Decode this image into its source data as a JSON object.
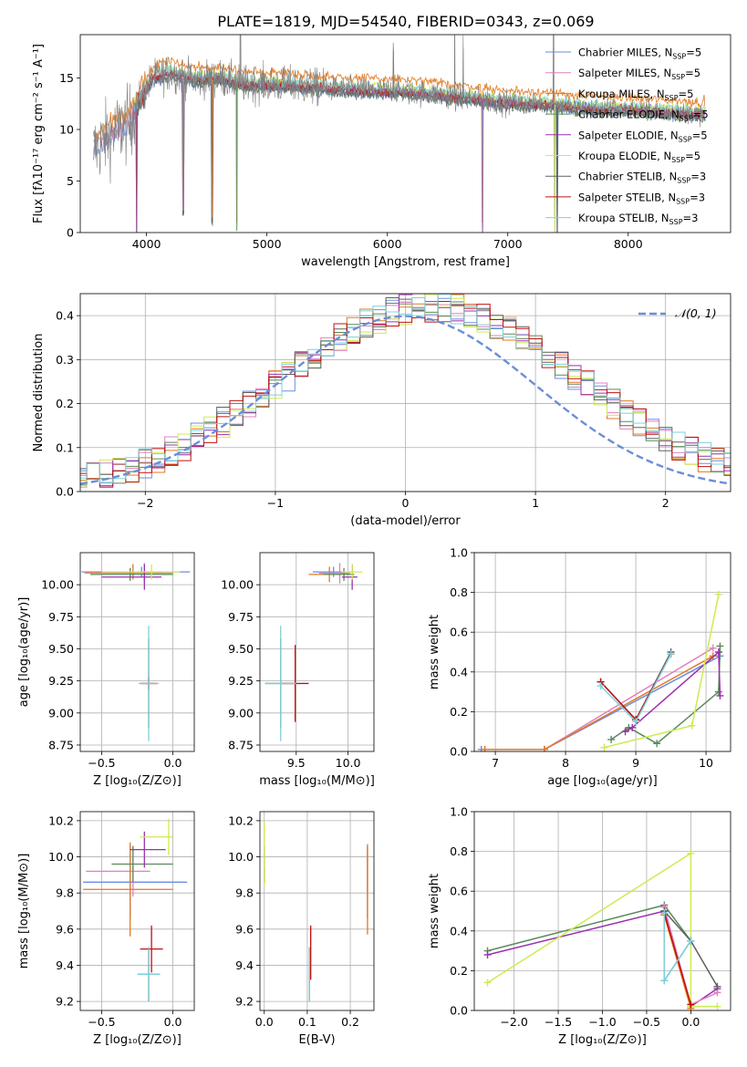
{
  "figure": {
    "title": "PLATE=1819, MJD=54540, FIBERID=0343, z=0.069"
  },
  "colors": {
    "Chabrier MILES": "#6a8ee0",
    "Salpeter MILES": "#e080c0",
    "Kroupa MILES": "#e07a20",
    "Chabrier ELODIE": "#5a8a5a",
    "Salpeter ELODIE": "#9a30b0",
    "Kroupa ELODIE": "#ccec50",
    "Chabrier STELIB": "#606060",
    "Salpeter STELIB": "#c01010",
    "Kroupa STELIB": "#80d0d8",
    "data": "#808080",
    "grid": "#b0b0b0",
    "normal": "#6a8ed8"
  },
  "chart_data": [
    {
      "id": "spectrum",
      "type": "line",
      "xlabel": "wavelength [Angstrom, rest frame]",
      "ylabel": "Flux [fλ10⁻¹⁷ erg cm⁻² s⁻¹ A⁻¹]",
      "xlim": [
        3450,
        8850
      ],
      "ylim": [
        0,
        19.2
      ],
      "xticks": [
        4000,
        5000,
        6000,
        7000,
        8000
      ],
      "yticks": [
        0,
        5,
        10,
        15
      ],
      "grid": false,
      "legend_position": "top-right",
      "series": [
        {
          "name": "Chabrier MILES, N",
          "sub": "SSP",
          "suffix": "=5",
          "color_key": "Chabrier MILES"
        },
        {
          "name": "Salpeter MILES, N",
          "sub": "SSP",
          "suffix": "=5",
          "color_key": "Salpeter MILES"
        },
        {
          "name": "Kroupa MILES, N",
          "sub": "SSP",
          "suffix": "=5",
          "color_key": "Kroupa MILES"
        },
        {
          "name": "Chabrier ELODIE, N",
          "sub": "SSP",
          "suffix": "=5",
          "color_key": "Chabrier ELODIE"
        },
        {
          "name": "Salpeter ELODIE, N",
          "sub": "SSP",
          "suffix": "=5",
          "color_key": "Salpeter ELODIE"
        },
        {
          "name": "Kroupa ELODIE, N",
          "sub": "SSP",
          "suffix": "=5",
          "color_key": "Kroupa ELODIE"
        },
        {
          "name": "Chabrier STELIB, N",
          "sub": "SSP",
          "suffix": "=3",
          "color_key": "Chabrier STELIB"
        },
        {
          "name": "Salpeter STELIB, N",
          "sub": "SSP",
          "suffix": "=3",
          "color_key": "Salpeter STELIB"
        },
        {
          "name": "Kroupa STELIB, N",
          "sub": "SSP",
          "suffix": "=3",
          "color_key": "Kroupa STELIB"
        }
      ],
      "continuum": [
        [
          3560,
          8.0
        ],
        [
          3700,
          9.5
        ],
        [
          3850,
          10.5
        ],
        [
          3950,
          13.0
        ],
        [
          4050,
          15.0
        ],
        [
          4200,
          15.5
        ],
        [
          4400,
          14.8
        ],
        [
          4600,
          15.0
        ],
        [
          4800,
          14.4
        ],
        [
          5000,
          14.4
        ],
        [
          5200,
          14.3
        ],
        [
          5500,
          14.0
        ],
        [
          5800,
          13.8
        ],
        [
          6100,
          13.7
        ],
        [
          6400,
          13.4
        ],
        [
          6700,
          13.0
        ],
        [
          7000,
          12.6
        ],
        [
          7300,
          12.5
        ],
        [
          7600,
          12.1
        ],
        [
          7900,
          12.0
        ],
        [
          8200,
          11.8
        ],
        [
          8600,
          11.5
        ]
      ],
      "dips": [
        [
          3920,
          -13.5
        ],
        [
          4305,
          -13.0
        ],
        [
          4545,
          -13.5
        ],
        [
          4750,
          -14.4
        ],
        [
          6790,
          -13.0
        ],
        [
          7390,
          -12.5
        ],
        [
          7410,
          -12.4
        ]
      ],
      "spikes": [
        [
          4780,
          4.0
        ],
        [
          6050,
          2.5
        ],
        [
          6560,
          4.5
        ],
        [
          6630,
          3.0
        ],
        [
          7380,
          5.0
        ]
      ]
    },
    {
      "id": "residuals",
      "type": "line",
      "xlabel": "(data-model)/error",
      "ylabel": "Normed distribution",
      "xlim": [
        -2.5,
        2.5
      ],
      "ylim": [
        0,
        0.45
      ],
      "xticks": [
        -2,
        -1,
        0,
        1,
        2
      ],
      "yticks": [
        0.0,
        0.1,
        0.2,
        0.3,
        0.4
      ],
      "grid": true,
      "legend_position": "top-right",
      "legend": "𝒩(0, 1)",
      "bin_width": 0.1
    },
    {
      "id": "age-vs-Z",
      "type": "scatter",
      "xlabel": "Z [log₁₀(Z/Z⊙)]",
      "ylabel": "age  [log₁₀(age/yr)]",
      "xlim": [
        -0.65,
        0.15
      ],
      "ylim": [
        8.7,
        10.25
      ],
      "xticks": [
        -0.5,
        0.0
      ],
      "yticks": [
        8.75,
        9.0,
        9.25,
        9.5,
        9.75,
        10.0
      ],
      "grid": true,
      "points": [
        {
          "key": "Chabrier MILES",
          "x": -0.22,
          "y": 10.1,
          "xerr": [
            0.42,
            0.34
          ],
          "yerr": 0.04
        },
        {
          "key": "Salpeter MILES",
          "x": -0.2,
          "y": 10.09,
          "xerr": [
            0.42,
            0.2
          ],
          "yerr": 0.08
        },
        {
          "key": "Kroupa MILES",
          "x": -0.28,
          "y": 10.1,
          "xerr": [
            0.33,
            0.2
          ],
          "yerr": 0.06
        },
        {
          "key": "Chabrier ELODIE",
          "x": -0.3,
          "y": 10.08,
          "xerr": [
            0.28,
            0.3
          ],
          "yerr": 0.05
        },
        {
          "key": "Salpeter ELODIE",
          "x": -0.2,
          "y": 10.06,
          "xerr": [
            0.3,
            0.12
          ],
          "yerr": 0.1
        },
        {
          "key": "Kroupa ELODIE",
          "x": -0.15,
          "y": 10.1,
          "xerr": [
            0.35,
            0.2
          ],
          "yerr": 0.06
        },
        {
          "key": "Chabrier STELIB",
          "x": -0.17,
          "y": 9.23,
          "xerr": [
            0.05,
            0.05
          ],
          "yerr": 0.35
        },
        {
          "key": "Salpeter STELIB",
          "x": -0.17,
          "y": 9.23,
          "xerr": [
            0.06,
            0.06
          ],
          "yerr": 0.05
        },
        {
          "key": "Kroupa STELIB",
          "x": -0.17,
          "y": 9.23,
          "xerr": [
            0.07,
            0.07
          ],
          "yerr": 0.45
        }
      ]
    },
    {
      "id": "age-vs-mass",
      "type": "scatter",
      "xlabel": "mass [log₁₀(M/M⊙)]",
      "ylabel": "",
      "xlim": [
        9.15,
        10.25
      ],
      "ylim": [
        8.7,
        10.25
      ],
      "xticks": [
        9.5,
        10.0
      ],
      "yticks": [
        8.75,
        9.0,
        9.25,
        9.5,
        9.75,
        10.0
      ],
      "grid": true,
      "points": [
        {
          "key": "Chabrier MILES",
          "x": 9.86,
          "y": 10.1,
          "xerr": [
            0.2,
            0.2
          ],
          "yerr": 0.04
        },
        {
          "key": "Salpeter MILES",
          "x": 9.92,
          "y": 10.09,
          "xerr": [
            0.2,
            0.1
          ],
          "yerr": 0.08
        },
        {
          "key": "Kroupa MILES",
          "x": 9.82,
          "y": 10.08,
          "xerr": [
            0.2,
            0.2
          ],
          "yerr": 0.06
        },
        {
          "key": "Chabrier ELODIE",
          "x": 9.96,
          "y": 10.08,
          "xerr": [
            0.2,
            0.1
          ],
          "yerr": 0.05
        },
        {
          "key": "Salpeter ELODIE",
          "x": 10.04,
          "y": 10.06,
          "xerr": [
            0.1,
            0.05
          ],
          "yerr": 0.1
        },
        {
          "key": "Kroupa ELODIE",
          "x": 10.04,
          "y": 10.1,
          "xerr": [
            0.1,
            0.1
          ],
          "yerr": 0.06
        },
        {
          "key": "Chabrier STELIB",
          "x": 9.35,
          "y": 9.23,
          "xerr": [
            0.15,
            0.15
          ],
          "yerr": 0.35
        },
        {
          "key": "Salpeter STELIB",
          "x": 9.49,
          "y": 9.23,
          "xerr": [
            0.13,
            0.13
          ],
          "yerr": 0.3
        },
        {
          "key": "Kroupa STELIB",
          "x": 9.35,
          "y": 9.23,
          "xerr": [
            0.15,
            0.15
          ],
          "yerr": 0.45
        }
      ]
    },
    {
      "id": "mass-weight-vs-age",
      "type": "line",
      "xlabel": "age  [log₁₀(age/yr)]",
      "ylabel": "mass weight",
      "xlim": [
        6.7,
        10.35
      ],
      "ylim": [
        0,
        1.0
      ],
      "xticks": [
        7,
        8,
        9,
        10
      ],
      "yticks": [
        0.0,
        0.2,
        0.4,
        0.6,
        0.8,
        1.0
      ],
      "grid": true,
      "series": [
        {
          "key": "Chabrier MILES",
          "x": [
            6.8,
            7.7,
            10.2
          ],
          "y": [
            0.01,
            0.01,
            0.48
          ]
        },
        {
          "key": "Salpeter MILES",
          "x": [
            6.85,
            7.7,
            10.1
          ],
          "y": [
            0.01,
            0.01,
            0.52
          ]
        },
        {
          "key": "Kroupa MILES",
          "x": [
            6.85,
            7.7,
            10.1
          ],
          "y": [
            0.01,
            0.01,
            0.48
          ]
        },
        {
          "key": "Chabrier ELODIE",
          "x": [
            8.65,
            8.9,
            9.3,
            10.18,
            10.2
          ],
          "y": [
            0.06,
            0.12,
            0.04,
            0.3,
            0.53
          ]
        },
        {
          "key": "Salpeter ELODIE",
          "x": [
            8.85,
            8.95,
            10.18,
            10.2
          ],
          "y": [
            0.1,
            0.12,
            0.5,
            0.28
          ]
        },
        {
          "key": "Kroupa ELODIE",
          "x": [
            8.55,
            9.8,
            10.18
          ],
          "y": [
            0.02,
            0.13,
            0.79
          ]
        },
        {
          "key": "Chabrier STELIB",
          "x": [
            8.5,
            9.0,
            9.5
          ],
          "y": [
            0.35,
            0.16,
            0.5
          ]
        },
        {
          "key": "Salpeter STELIB",
          "x": [
            8.5,
            9.0,
            9.5
          ],
          "y": [
            0.35,
            0.16,
            0.49
          ]
        },
        {
          "key": "Kroupa STELIB",
          "x": [
            8.5,
            9.0,
            9.5
          ],
          "y": [
            0.33,
            0.15,
            0.49
          ]
        }
      ]
    },
    {
      "id": "mass-vs-Z",
      "type": "scatter",
      "xlabel": "Z [log₁₀(Z/Z⊙)]",
      "ylabel": "mass [log₁₀(M/M⊙)]",
      "xlim": [
        -0.65,
        0.15
      ],
      "ylim": [
        9.15,
        10.25
      ],
      "xticks": [
        -0.5,
        0.0
      ],
      "yticks": [
        9.2,
        9.4,
        9.6,
        9.8,
        10.0,
        10.2
      ],
      "grid": true,
      "points": [
        {
          "key": "Chabrier MILES",
          "x": -0.3,
          "y": 9.86,
          "xerr": [
            0.33,
            0.4
          ],
          "yerr": 0.2
        },
        {
          "key": "Salpeter MILES",
          "x": -0.28,
          "y": 9.92,
          "xerr": [
            0.33,
            0.12
          ],
          "yerr": 0.14
        },
        {
          "key": "Kroupa MILES",
          "x": -0.3,
          "y": 9.82,
          "xerr": [
            0.33,
            0.3
          ],
          "yerr": 0.26
        },
        {
          "key": "Chabrier ELODIE",
          "x": -0.28,
          "y": 9.96,
          "xerr": [
            0.15,
            0.28
          ],
          "yerr": 0.1
        },
        {
          "key": "Salpeter ELODIE",
          "x": -0.2,
          "y": 10.04,
          "xerr": [
            0.1,
            0.15
          ],
          "yerr": 0.1
        },
        {
          "key": "Kroupa ELODIE",
          "x": -0.03,
          "y": 10.11,
          "xerr": [
            0.2,
            0.03
          ],
          "yerr": 0.1
        },
        {
          "key": "Chabrier STELIB",
          "x": -0.17,
          "y": 9.35,
          "xerr": [
            0.08,
            0.08
          ],
          "yerr": 0.15
        },
        {
          "key": "Salpeter STELIB",
          "x": -0.15,
          "y": 9.49,
          "xerr": [
            0.08,
            0.08
          ],
          "yerr": 0.13
        },
        {
          "key": "Kroupa STELIB",
          "x": -0.17,
          "y": 9.35,
          "xerr": [
            0.08,
            0.08
          ],
          "yerr": 0.15
        }
      ]
    },
    {
      "id": "mass-vs-EBV",
      "type": "scatter",
      "xlabel": "E(B-V)",
      "ylabel": "",
      "xlim": [
        -0.01,
        0.255
      ],
      "ylim": [
        9.15,
        10.25
      ],
      "xticks": [
        0.0,
        0.1,
        0.2
      ],
      "yticks": [
        9.2,
        9.4,
        9.6,
        9.8,
        10.0,
        10.2
      ],
      "grid": true,
      "points": [
        {
          "key": "Chabrier MILES",
          "x": 0.24,
          "y": 9.86,
          "yerr": 0.2
        },
        {
          "key": "Salpeter MILES",
          "x": 0.24,
          "y": 9.92,
          "yerr": 0.12
        },
        {
          "key": "Kroupa MILES",
          "x": 0.24,
          "y": 9.82,
          "yerr": 0.25
        },
        {
          "key": "Chabrier ELODIE",
          "x": 0.0,
          "y": 9.96,
          "yerr": 0.1
        },
        {
          "key": "Salpeter ELODIE",
          "x": 0.0,
          "y": 9.9,
          "yerr": 0.04
        },
        {
          "key": "Kroupa ELODIE",
          "x": 0.0,
          "y": 10.02,
          "yerr": 0.18
        },
        {
          "key": "Chabrier STELIB",
          "x": 0.105,
          "y": 9.35,
          "yerr": 0.15
        },
        {
          "key": "Salpeter STELIB",
          "x": 0.108,
          "y": 9.47,
          "yerr": 0.15
        },
        {
          "key": "Kroupa STELIB",
          "x": 0.105,
          "y": 9.35,
          "yerr": 0.15
        }
      ]
    },
    {
      "id": "mass-weight-vs-Z",
      "type": "line",
      "xlabel": "Z [log₁₀(Z/Z⊙)]",
      "ylabel": "mass weight",
      "xlim": [
        -2.45,
        0.45
      ],
      "ylim": [
        0,
        1.0
      ],
      "xticks": [
        -2.0,
        -1.5,
        -1.0,
        -0.5,
        0.0
      ],
      "yticks": [
        0.0,
        0.2,
        0.4,
        0.6,
        0.8,
        1.0
      ],
      "grid": true,
      "series": [
        {
          "key": "Chabrier ELODIE",
          "x": [
            -2.3,
            -0.3,
            0.0
          ],
          "y": [
            0.3,
            0.53,
            0.35
          ]
        },
        {
          "key": "Salpeter ELODIE",
          "x": [
            -2.3,
            -0.3,
            0.0,
            0.3
          ],
          "y": [
            0.28,
            0.5,
            0.02,
            0.11
          ]
        },
        {
          "key": "Kroupa ELODIE",
          "x": [
            -2.3,
            0.0,
            0.0,
            0.3
          ],
          "y": [
            0.14,
            0.79,
            0.02,
            0.02
          ]
        },
        {
          "key": "Chabrier MILES",
          "x": [
            -0.3,
            -0.3,
            0.0
          ],
          "y": [
            0.48,
            0.15,
            0.35
          ]
        },
        {
          "key": "Salpeter MILES",
          "x": [
            -0.3,
            0.0,
            0.3
          ],
          "y": [
            0.52,
            0.03,
            0.09
          ]
        },
        {
          "key": "Kroupa MILES",
          "x": [
            -0.3,
            0.0
          ],
          "y": [
            0.48,
            0.01
          ]
        },
        {
          "key": "Chabrier STELIB",
          "x": [
            -0.3,
            0.0,
            0.3
          ],
          "y": [
            0.5,
            0.35,
            0.12
          ]
        },
        {
          "key": "Salpeter STELIB",
          "x": [
            -0.3,
            0.0
          ],
          "y": [
            0.49,
            0.03
          ]
        },
        {
          "key": "Kroupa STELIB",
          "x": [
            -0.3,
            -0.3,
            0.0
          ],
          "y": [
            0.49,
            0.15,
            0.35
          ]
        }
      ]
    }
  ]
}
